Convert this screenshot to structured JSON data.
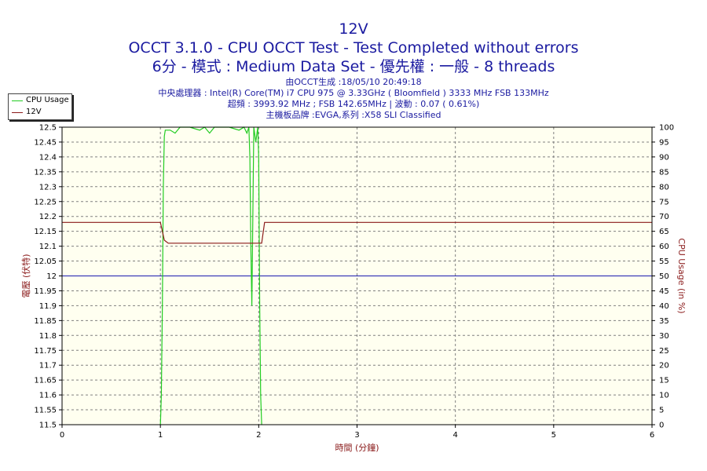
{
  "header": {
    "title": "12V",
    "line1": "OCCT 3.1.0 - CPU OCCT Test - Test Completed without errors",
    "line2": "6分 - 模式 : Medium Data Set - 優先權 : 一般 - 8 threads",
    "info1": "由OCCT生成 :18/05/10 20:49:18",
    "info2": "中央處理器 : Intel(R) Core(TM) i7 CPU 975 @ 3.33GHz ( Bloomfield ) 3333 MHz FSB 133MHz",
    "info3": "超頻 : 3993.92 MHz ; FSB 142.65MHz | 波動 : 0.07 ( 0.61%)",
    "info4": "主機板品牌 :EVGA,系列 :X58 SLI Classified"
  },
  "legend": {
    "items": [
      {
        "label": "CPU Usage",
        "color": "#22cc22"
      },
      {
        "label": "12V",
        "color": "#8b1a1a"
      }
    ]
  },
  "colors": {
    "plot_bg": "#fffff0",
    "grid": "#808080",
    "cpu": "#22cc22",
    "voltage": "#8b1a1a",
    "reference": "#1a1ab0"
  },
  "chart_data": {
    "type": "line",
    "xlabel": "時間 (分鐘)",
    "ylabel": "電壓 (伏特)",
    "y2label": "CPU Usage (in %)",
    "xlim": [
      0,
      6
    ],
    "ylim": [
      11.5,
      12.5
    ],
    "y2lim": [
      0,
      100
    ],
    "x_ticks": [
      "0",
      "1",
      "2",
      "3",
      "4",
      "5",
      "6"
    ],
    "y_ticks": [
      "12.5",
      "12.45",
      "12.4",
      "12.35",
      "12.3",
      "12.25",
      "12.2",
      "12.15",
      "12.1",
      "12.05",
      "12",
      "11.95",
      "11.9",
      "11.85",
      "11.8",
      "11.75",
      "11.7",
      "11.65",
      "11.6",
      "11.55",
      "11.5"
    ],
    "y2_ticks": [
      "100",
      "95",
      "90",
      "85",
      "80",
      "75",
      "70",
      "65",
      "60",
      "55",
      "50",
      "45",
      "40",
      "35",
      "30",
      "25",
      "20",
      "15",
      "10",
      "5",
      "0"
    ],
    "grid": true,
    "reference_line": 12.0,
    "series": [
      {
        "name": "12V",
        "axis": "left",
        "x": [
          0,
          1.0,
          1.04,
          1.08,
          1.9,
          1.95,
          2.03,
          2.06,
          6
        ],
        "values": [
          12.18,
          12.18,
          12.12,
          12.11,
          12.11,
          12.11,
          12.11,
          12.18,
          12.18
        ]
      },
      {
        "name": "CPU Usage",
        "axis": "right",
        "x": [
          1.0,
          1.01,
          1.02,
          1.03,
          1.04,
          1.05,
          1.1,
          1.15,
          1.2,
          1.3,
          1.4,
          1.45,
          1.5,
          1.55,
          1.6,
          1.7,
          1.8,
          1.85,
          1.88,
          1.9,
          1.91,
          1.92,
          1.93,
          1.95,
          1.97,
          1.99,
          2.0,
          2.01,
          2.02,
          2.03
        ],
        "values": [
          0,
          10,
          40,
          80,
          97,
          99,
          99,
          98,
          100,
          100,
          99,
          100,
          98,
          100,
          100,
          100,
          99,
          100,
          98,
          100,
          90,
          60,
          40,
          100,
          95,
          100,
          90,
          40,
          10,
          0
        ]
      }
    ]
  }
}
